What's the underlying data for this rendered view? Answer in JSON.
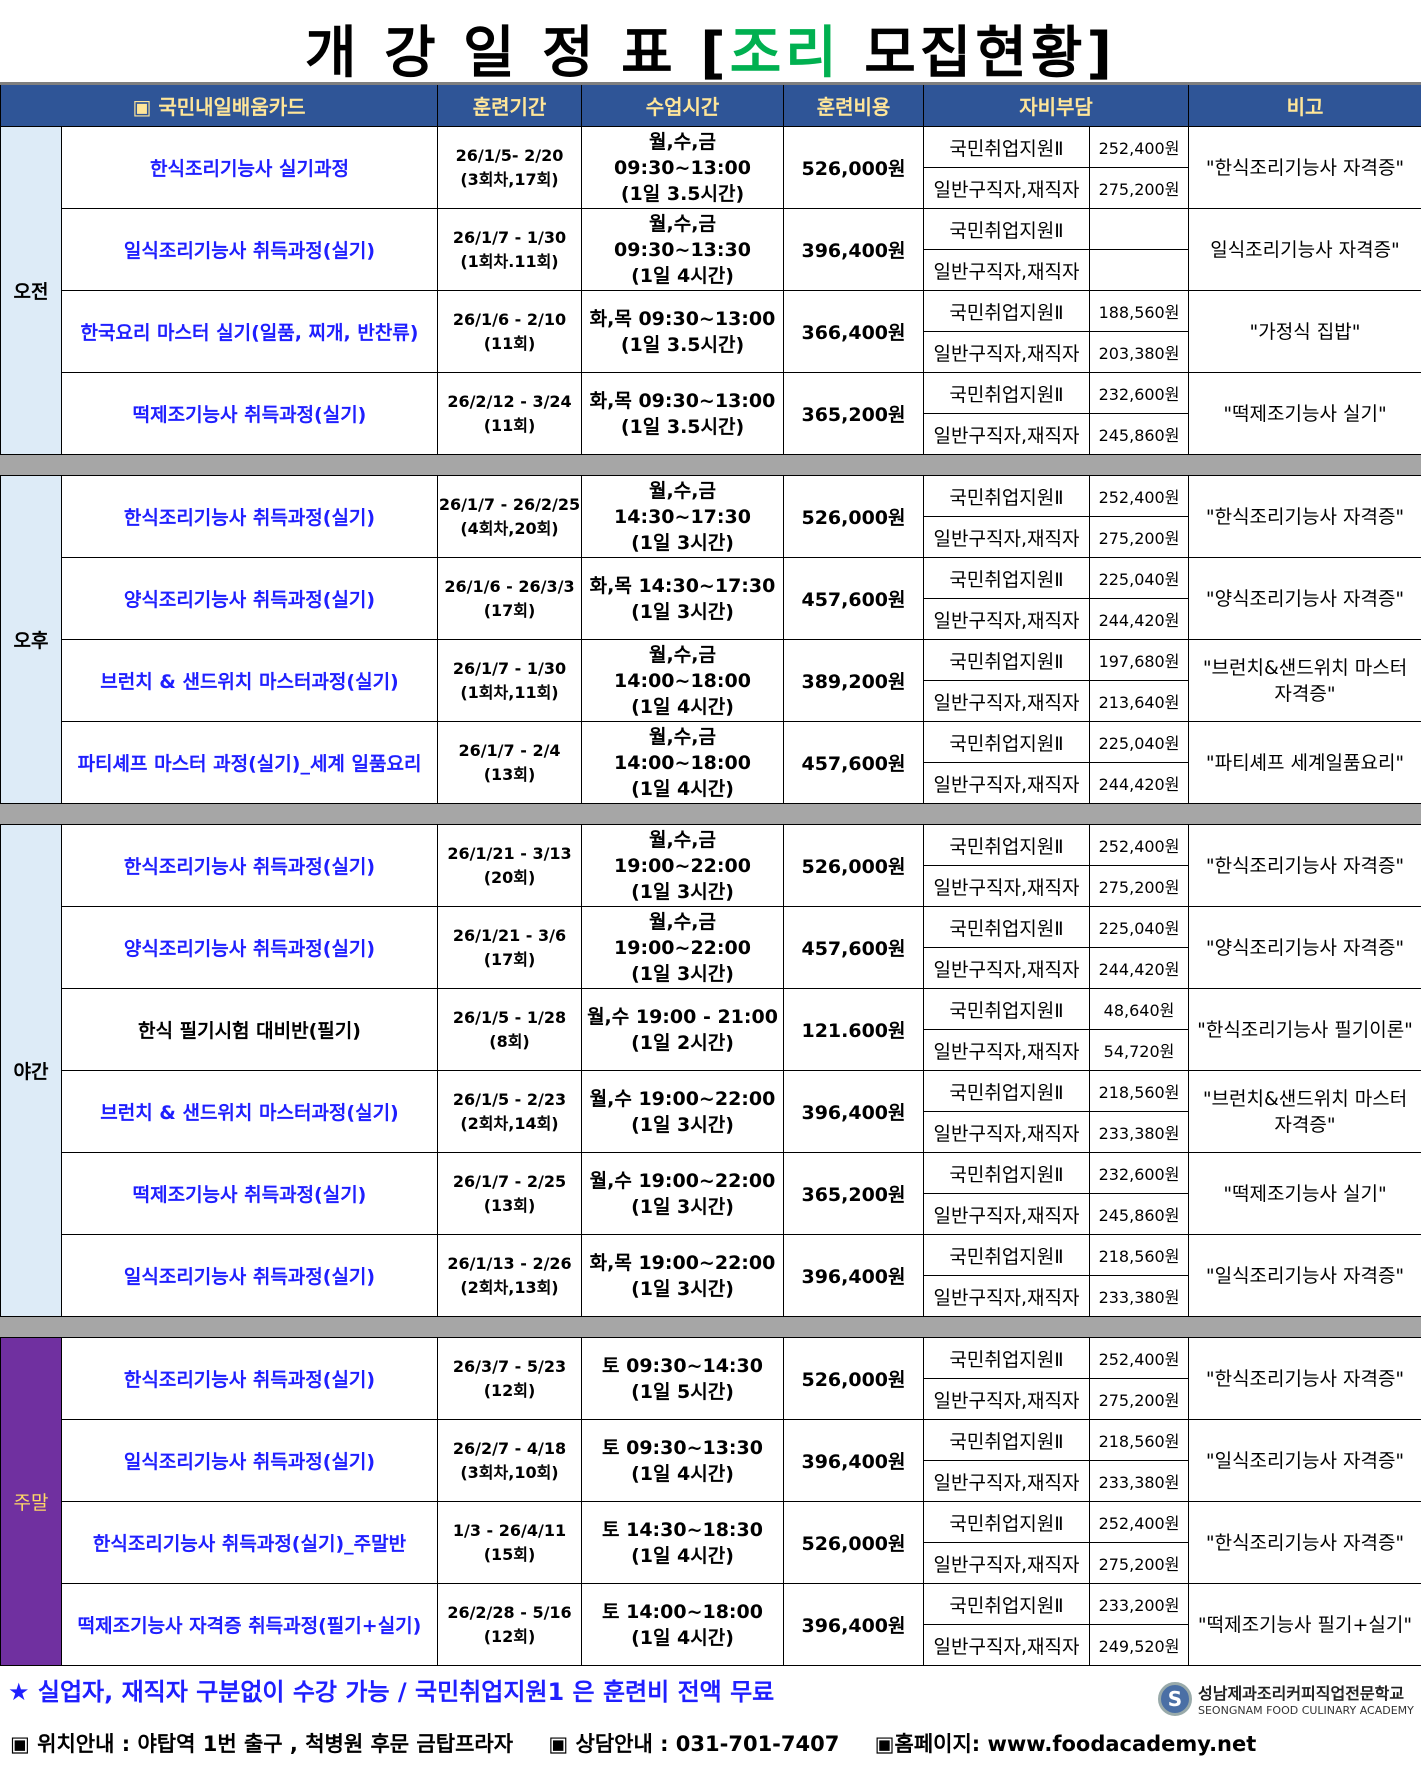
{
  "title": {
    "prefix": "개 강 일 정 표 [",
    "accent": "조리",
    "suffix": " 모집현황]"
  },
  "colors": {
    "accent": "#00b050",
    "header_bg": "#2f5597",
    "header_text": "#ffe699",
    "course_text": "#1f1fff",
    "weekend_bg": "#7030a0"
  },
  "headers": [
    "▣ 국민내일배움카드",
    "훈련기간",
    "수업시간",
    "훈련비용",
    "자비부담",
    "비고"
  ],
  "type_labels": [
    "국민취업지원Ⅱ",
    "일반구직자,재직자"
  ],
  "sessions": [
    {
      "name": "오전",
      "courses": [
        {
          "name": "한식조리기능사 실기과정",
          "period": [
            "26/1/5- 2/20",
            "(3회차,17회)"
          ],
          "time": [
            "월,수,금 09:30~13:00",
            "(1일 3.5시간)"
          ],
          "cost": "526,000원",
          "amounts": [
            "252,400원",
            "275,200원"
          ],
          "note": "\"한식조리기능사 자격증\""
        },
        {
          "name": "일식조리기능사 취득과정(실기)",
          "period": [
            "26/1/7 - 1/30",
            "(1회차.11회)"
          ],
          "time": [
            "월,수,금 09:30~13:30",
            "(1일 4시간)"
          ],
          "cost": "396,400원",
          "amounts": [
            "",
            ""
          ],
          "note": "일식조리기능사 자격증\""
        },
        {
          "name": "한국요리 마스터 실기(일품, 찌개, 반찬류)",
          "period": [
            "26/1/6 - 2/10",
            "(11회)"
          ],
          "time": [
            "화,목 09:30~13:00",
            "(1일 3.5시간)"
          ],
          "cost": "366,400원",
          "amounts": [
            "188,560원",
            "203,380원"
          ],
          "note": "\"가정식 집밥\""
        },
        {
          "name": "떡제조기능사 취득과정(실기)",
          "period": [
            "26/2/12 - 3/24",
            "(11회)"
          ],
          "time": [
            "화,목 09:30~13:00",
            "(1일 3.5시간)"
          ],
          "cost": "365,200원",
          "amounts": [
            "232,600원",
            "245,860원"
          ],
          "note": "\"떡제조기능사 실기\""
        }
      ]
    },
    {
      "name": "오후",
      "courses": [
        {
          "name": "한식조리기능사 취득과정(실기)",
          "period": [
            "26/1/7 - 26/2/25",
            "(4회차,20회)"
          ],
          "time": [
            "월,수,금 14:30~17:30",
            "(1일 3시간)"
          ],
          "cost": "526,000원",
          "amounts": [
            "252,400원",
            "275,200원"
          ],
          "note": "\"한식조리기능사 자격증\""
        },
        {
          "name": "양식조리기능사 취득과정(실기)",
          "period": [
            "26/1/6 - 26/3/3",
            "(17회)"
          ],
          "time": [
            "화,목 14:30~17:30",
            "(1일 3시간)"
          ],
          "cost": "457,600원",
          "amounts": [
            "225,040원",
            "244,420원"
          ],
          "note": "\"양식조리기능사 자격증\""
        },
        {
          "name": "브런치 & 샌드위치 마스터과정(실기)",
          "period": [
            "26/1/7 - 1/30",
            "(1회차,11회)"
          ],
          "time": [
            "월,수,금 14:00~18:00",
            "(1일 4시간)"
          ],
          "cost": "389,200원",
          "amounts": [
            "197,680원",
            "213,640원"
          ],
          "note": "\"브런치&샌드위치 마스터 자격증\""
        },
        {
          "name": "파티셰프 마스터 과정(실기)_세계 일품요리",
          "period": [
            "26/1/7 - 2/4",
            "(13회)"
          ],
          "time": [
            "월,수,금 14:00~18:00",
            "(1일 4시간)"
          ],
          "cost": "457,600원",
          "amounts": [
            "225,040원",
            "244,420원"
          ],
          "note": "\"파티셰프 세계일품요리\""
        }
      ]
    },
    {
      "name": "야간",
      "courses": [
        {
          "name": "한식조리기능사 취득과정(실기)",
          "period": [
            "26/1/21 - 3/13",
            "(20회)"
          ],
          "time": [
            "월,수,금 19:00~22:00",
            "(1일 3시간)"
          ],
          "cost": "526,000원",
          "amounts": [
            "252,400원",
            "275,200원"
          ],
          "note": "\"한식조리기능사 자격증\""
        },
        {
          "name": "양식조리기능사 취득과정(실기)",
          "period": [
            "26/1/21 - 3/6",
            "(17회)"
          ],
          "time": [
            "월,수,금 19:00~22:00",
            "(1일 3시간)"
          ],
          "cost": "457,600원",
          "amounts": [
            "225,040원",
            "244,420원"
          ],
          "note": "\"양식조리기능사 자격증\""
        },
        {
          "name": "한식 필기시험 대비반(필기)",
          "black": true,
          "period": [
            "26/1/5 - 1/28",
            "(8회)"
          ],
          "time": [
            "월,수 19:00 - 21:00",
            "(1일 2시간)"
          ],
          "cost": "121.600원",
          "amounts": [
            "48,640원",
            "54,720원"
          ],
          "note": "\"한식조리기능사 필기이론\""
        },
        {
          "name": "브런치 & 샌드위치 마스터과정(실기)",
          "period": [
            "26/1/5 - 2/23",
            "(2회차,14회)"
          ],
          "time": [
            "월,수 19:00~22:00",
            "(1일 3시간)"
          ],
          "cost": "396,400원",
          "amounts": [
            "218,560원",
            "233,380원"
          ],
          "note": "\"브런치&샌드위치 마스터 자격증\""
        },
        {
          "name": "떡제조기능사 취득과정(실기)",
          "period": [
            "26/1/7 - 2/25",
            "(13회)"
          ],
          "time": [
            "월,수 19:00~22:00",
            "(1일 3시간)"
          ],
          "cost": "365,200원",
          "amounts": [
            "232,600원",
            "245,860원"
          ],
          "note": "\"떡제조기능사 실기\""
        },
        {
          "name": "일식조리기능사 취득과정(실기)",
          "period": [
            "26/1/13 - 2/26",
            "(2회차,13회)"
          ],
          "time": [
            "화,목 19:00~22:00",
            "(1일 3시간)"
          ],
          "cost": "396,400원",
          "amounts": [
            "218,560원",
            "233,380원"
          ],
          "note": "\"일식조리기능사 자격증\""
        }
      ]
    },
    {
      "name": "주말",
      "weekend": true,
      "courses": [
        {
          "name": "한식조리기능사 취득과정(실기)",
          "period": [
            "26/3/7 - 5/23",
            "(12회)"
          ],
          "time": [
            "토 09:30~14:30",
            "(1일 5시간)"
          ],
          "cost": "526,000원",
          "amounts": [
            "252,400원",
            "275,200원"
          ],
          "note": "\"한식조리기능사 자격증\""
        },
        {
          "name": "일식조리기능사 취득과정(실기)",
          "period": [
            "26/2/7 - 4/18",
            "(3회차,10회)"
          ],
          "time": [
            "토 09:30~13:30",
            "(1일 4시간)"
          ],
          "cost": "396,400원",
          "amounts": [
            "218,560원",
            "233,380원"
          ],
          "note": "\"일식조리기능사 자격증\""
        },
        {
          "name": "한식조리기능사 취득과정(실기)_주말반",
          "period": [
            "1/3 - 26/4/11",
            "(15회)"
          ],
          "time": [
            "토 14:30~18:30",
            "(1일 4시간)"
          ],
          "cost": "526,000원",
          "amounts": [
            "252,400원",
            "275,200원"
          ],
          "note": "\"한식조리기능사 자격증\""
        },
        {
          "name": "떡제조기능사 자격증 취득과정(필기+실기)",
          "period": [
            "26/2/28 - 5/16",
            "(12회)"
          ],
          "time": [
            "토 14:00~18:00",
            "(1일 4시간)"
          ],
          "cost": "396,400원",
          "amounts": [
            "233,200원",
            "249,520원"
          ],
          "note": "\"떡제조기능사 필기+실기\""
        }
      ]
    }
  ],
  "footer": {
    "notice": "★  실업자, 재직자 구분없이 수강 가능  /  국민취업지원1 은 훈련비 전액 무료",
    "location": "▣ 위치안내 : 야탑역 1번 출구 , 척병원 후문 금탑프라자",
    "contact": "▣ 상담안내 : 031-701-7407",
    "homepage": "▣홈페이지: www.foodacademy.net",
    "logo_ko": "성남제과조리커피직업전문학교",
    "logo_en": "SEONGNAM FOOD CULINARY ACADEMY"
  }
}
